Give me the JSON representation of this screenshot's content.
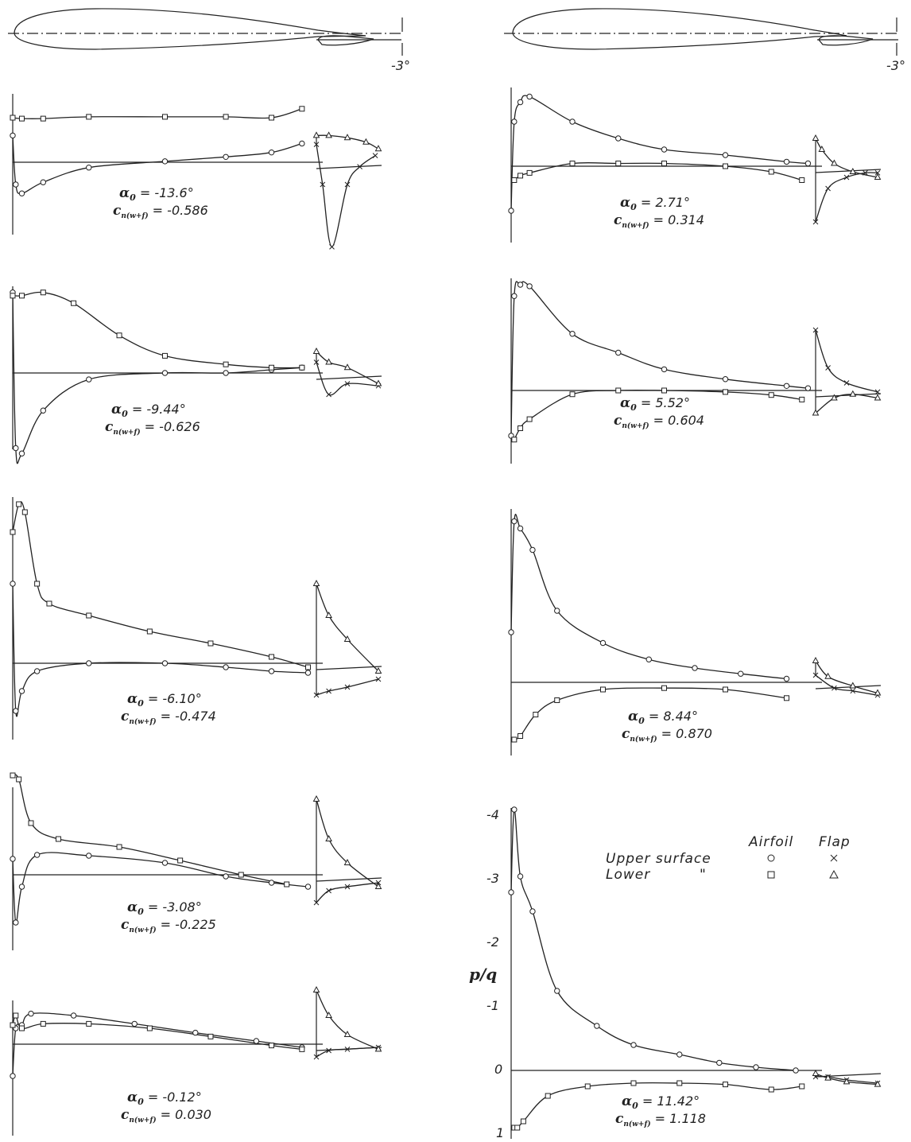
{
  "chart_data": {
    "type": "line",
    "flap_angle_label": "-3°",
    "ylabel": "p/q",
    "y_ticks": [
      "-4",
      "-3",
      "-2",
      "-1",
      "0",
      "1"
    ],
    "legend": {
      "col_airfoil": "Airfoil",
      "col_flap": "Flap",
      "upper": "Upper surface",
      "lower": "Lower",
      "ditto": "\"",
      "upper_airfoil_marker": "circle",
      "upper_flap_marker": "x",
      "lower_airfoil_marker": "square",
      "lower_flap_marker": "triangle"
    },
    "cn_symbol": "c",
    "cn_subscript": "n(w+f)",
    "alpha_symbol": "α",
    "alpha_subscript": "0",
    "panels": [
      {
        "alpha": "-13.6°",
        "cn": "-0.586",
        "upper": [
          [
            0.0,
            -0.6
          ],
          [
            0.01,
            0.5
          ],
          [
            0.03,
            0.7
          ],
          [
            0.1,
            0.45
          ],
          [
            0.25,
            0.12
          ],
          [
            0.5,
            -0.02
          ],
          [
            0.7,
            -0.12
          ],
          [
            0.85,
            -0.22
          ],
          [
            0.95,
            -0.42
          ]
        ],
        "lower": [
          [
            0.0,
            -1.0
          ],
          [
            0.03,
            -0.98
          ],
          [
            0.1,
            -0.98
          ],
          [
            0.25,
            -1.02
          ],
          [
            0.5,
            -1.02
          ],
          [
            0.7,
            -1.02
          ],
          [
            0.85,
            -1.0
          ],
          [
            0.95,
            -1.2
          ]
        ],
        "flap_upper": [
          [
            0.0,
            -0.4
          ],
          [
            0.1,
            0.5
          ],
          [
            0.25,
            1.9
          ],
          [
            0.5,
            0.5
          ],
          [
            0.7,
            0.1
          ],
          [
            0.95,
            -0.15
          ]
        ],
        "flap_lower": [
          [
            0.0,
            -0.6
          ],
          [
            0.2,
            -0.6
          ],
          [
            0.5,
            -0.55
          ],
          [
            0.8,
            -0.45
          ],
          [
            1.0,
            -0.3
          ]
        ]
      },
      {
        "alpha": "2.71°",
        "cn": "0.314",
        "upper": [
          [
            0.0,
            0.8
          ],
          [
            0.01,
            -0.8
          ],
          [
            0.03,
            -1.15
          ],
          [
            0.06,
            -1.25
          ],
          [
            0.2,
            -0.8
          ],
          [
            0.35,
            -0.5
          ],
          [
            0.5,
            -0.3
          ],
          [
            0.7,
            -0.2
          ],
          [
            0.9,
            -0.08
          ],
          [
            0.97,
            -0.05
          ]
        ],
        "lower": [
          [
            0.01,
            0.25
          ],
          [
            0.03,
            0.17
          ],
          [
            0.06,
            0.12
          ],
          [
            0.2,
            -0.05
          ],
          [
            0.35,
            -0.05
          ],
          [
            0.5,
            -0.05
          ],
          [
            0.7,
            0.0
          ],
          [
            0.85,
            0.1
          ],
          [
            0.95,
            0.25
          ]
        ],
        "flap_upper": [
          [
            0.0,
            1.0
          ],
          [
            0.2,
            0.4
          ],
          [
            0.5,
            0.2
          ],
          [
            0.8,
            0.12
          ],
          [
            1.0,
            0.12
          ]
        ],
        "flap_lower": [
          [
            0.0,
            -0.5
          ],
          [
            0.1,
            -0.3
          ],
          [
            0.3,
            -0.05
          ],
          [
            0.6,
            0.1
          ],
          [
            1.0,
            0.2
          ]
        ]
      },
      {
        "alpha": "-9.44°",
        "cn": "-0.626",
        "upper": [
          [
            0.0,
            -0.75
          ],
          [
            0.01,
            0.7
          ],
          [
            0.03,
            0.75
          ],
          [
            0.1,
            0.35
          ],
          [
            0.25,
            0.06
          ],
          [
            0.5,
            0.0
          ],
          [
            0.7,
            0.0
          ],
          [
            0.85,
            -0.03
          ],
          [
            0.95,
            -0.05
          ]
        ],
        "lower": [
          [
            0.0,
            -0.72
          ],
          [
            0.03,
            -0.72
          ],
          [
            0.1,
            -0.75
          ],
          [
            0.2,
            -0.65
          ],
          [
            0.35,
            -0.35
          ],
          [
            0.5,
            -0.16
          ],
          [
            0.7,
            -0.08
          ],
          [
            0.85,
            -0.05
          ],
          [
            0.95,
            -0.05
          ]
        ],
        "flap_upper": [
          [
            0.0,
            -0.1
          ],
          [
            0.2,
            0.2
          ],
          [
            0.5,
            0.1
          ],
          [
            1.0,
            0.12
          ]
        ],
        "flap_lower": [
          [
            0.0,
            -0.2
          ],
          [
            0.2,
            -0.1
          ],
          [
            0.5,
            -0.05
          ],
          [
            1.0,
            0.1
          ]
        ]
      },
      {
        "alpha": "5.52°",
        "cn": "0.604",
        "upper": [
          [
            0.0,
            0.6
          ],
          [
            0.01,
            -1.25
          ],
          [
            0.03,
            -1.4
          ],
          [
            0.06,
            -1.38
          ],
          [
            0.2,
            -0.75
          ],
          [
            0.35,
            -0.5
          ],
          [
            0.5,
            -0.28
          ],
          [
            0.7,
            -0.15
          ],
          [
            0.9,
            -0.06
          ],
          [
            0.97,
            -0.03
          ]
        ],
        "lower": [
          [
            0.01,
            0.65
          ],
          [
            0.03,
            0.5
          ],
          [
            0.06,
            0.38
          ],
          [
            0.2,
            0.05
          ],
          [
            0.35,
            0.0
          ],
          [
            0.5,
            0.0
          ],
          [
            0.7,
            0.02
          ],
          [
            0.85,
            0.06
          ],
          [
            0.95,
            0.12
          ]
        ],
        "flap_upper": [
          [
            0.0,
            -0.8
          ],
          [
            0.2,
            -0.3
          ],
          [
            0.5,
            -0.1
          ],
          [
            1.0,
            0.02
          ]
        ],
        "flap_lower": [
          [
            0.0,
            0.3
          ],
          [
            0.3,
            0.1
          ],
          [
            0.6,
            0.05
          ],
          [
            1.0,
            0.1
          ]
        ]
      },
      {
        "alpha": "-6.10°",
        "cn": "-0.474",
        "upper": [
          [
            0.0,
            -1.0
          ],
          [
            0.01,
            0.6
          ],
          [
            0.03,
            0.35
          ],
          [
            0.08,
            0.1
          ],
          [
            0.25,
            0.0
          ],
          [
            0.5,
            0.0
          ],
          [
            0.7,
            0.05
          ],
          [
            0.85,
            0.1
          ],
          [
            0.97,
            0.12
          ]
        ],
        "lower": [
          [
            0.0,
            -1.65
          ],
          [
            0.02,
            -2.0
          ],
          [
            0.04,
            -1.9
          ],
          [
            0.08,
            -1.0
          ],
          [
            0.12,
            -0.75
          ],
          [
            0.25,
            -0.6
          ],
          [
            0.45,
            -0.4
          ],
          [
            0.65,
            -0.25
          ],
          [
            0.85,
            -0.08
          ],
          [
            0.97,
            0.05
          ]
        ],
        "flap_upper": [
          [
            0.0,
            0.4
          ],
          [
            0.2,
            0.35
          ],
          [
            0.5,
            0.3
          ],
          [
            1.0,
            0.2
          ]
        ],
        "flap_lower": [
          [
            0.0,
            -1.0
          ],
          [
            0.2,
            -0.6
          ],
          [
            0.5,
            -0.3
          ],
          [
            1.0,
            0.1
          ]
        ]
      },
      {
        "alpha": "8.44°",
        "cn": "0.870",
        "upper": [
          [
            0.0,
            -0.7
          ],
          [
            0.01,
            -2.25
          ],
          [
            0.03,
            -2.15
          ],
          [
            0.07,
            -1.85
          ],
          [
            0.15,
            -1.0
          ],
          [
            0.3,
            -0.55
          ],
          [
            0.45,
            -0.32
          ],
          [
            0.6,
            -0.2
          ],
          [
            0.75,
            -0.12
          ],
          [
            0.9,
            -0.05
          ]
        ],
        "lower": [
          [
            0.01,
            0.8
          ],
          [
            0.03,
            0.75
          ],
          [
            0.08,
            0.45
          ],
          [
            0.15,
            0.25
          ],
          [
            0.3,
            0.1
          ],
          [
            0.5,
            0.08
          ],
          [
            0.7,
            0.1
          ],
          [
            0.9,
            0.22
          ]
        ],
        "flap_upper": [
          [
            0.0,
            -0.1
          ],
          [
            0.3,
            0.08
          ],
          [
            0.6,
            0.12
          ],
          [
            1.0,
            0.18
          ]
        ],
        "flap_lower": [
          [
            0.0,
            -0.3
          ],
          [
            0.2,
            -0.08
          ],
          [
            0.6,
            0.05
          ],
          [
            1.0,
            0.15
          ]
        ]
      },
      {
        "alpha": "-3.08°",
        "cn": "-0.225",
        "upper": [
          [
            0.0,
            -0.2
          ],
          [
            0.01,
            0.6
          ],
          [
            0.03,
            0.15
          ],
          [
            0.08,
            -0.25
          ],
          [
            0.25,
            -0.24
          ],
          [
            0.5,
            -0.15
          ],
          [
            0.7,
            0.02
          ],
          [
            0.85,
            0.1
          ],
          [
            0.97,
            0.15
          ]
        ],
        "lower": [
          [
            0.0,
            -1.25
          ],
          [
            0.02,
            -1.2
          ],
          [
            0.06,
            -0.65
          ],
          [
            0.15,
            -0.45
          ],
          [
            0.35,
            -0.35
          ],
          [
            0.55,
            -0.18
          ],
          [
            0.75,
            0.0
          ],
          [
            0.9,
            0.12
          ]
        ],
        "flap_upper": [
          [
            0.0,
            0.35
          ],
          [
            0.2,
            0.2
          ],
          [
            0.5,
            0.15
          ],
          [
            1.0,
            0.1
          ]
        ],
        "flap_lower": [
          [
            0.0,
            -0.95
          ],
          [
            0.2,
            -0.45
          ],
          [
            0.5,
            -0.15
          ],
          [
            1.0,
            0.15
          ]
        ]
      },
      {
        "alpha": "11.42°",
        "cn": "1.118",
        "upper": [
          [
            0.0,
            -2.8
          ],
          [
            0.01,
            -4.1
          ],
          [
            0.03,
            -3.05
          ],
          [
            0.07,
            -2.5
          ],
          [
            0.15,
            -1.25
          ],
          [
            0.28,
            -0.7
          ],
          [
            0.4,
            -0.4
          ],
          [
            0.55,
            -0.25
          ],
          [
            0.68,
            -0.12
          ],
          [
            0.8,
            -0.05
          ],
          [
            0.93,
            0.0
          ]
        ],
        "lower": [
          [
            0.01,
            0.9
          ],
          [
            0.02,
            0.9
          ],
          [
            0.04,
            0.8
          ],
          [
            0.12,
            0.4
          ],
          [
            0.25,
            0.25
          ],
          [
            0.4,
            0.2
          ],
          [
            0.55,
            0.2
          ],
          [
            0.7,
            0.22
          ],
          [
            0.85,
            0.3
          ],
          [
            0.95,
            0.25
          ]
        ],
        "flap_upper": [
          [
            0.0,
            0.1
          ],
          [
            0.2,
            0.1
          ],
          [
            0.5,
            0.15
          ],
          [
            1.0,
            0.2
          ]
        ],
        "flap_lower": [
          [
            0.0,
            0.05
          ],
          [
            0.2,
            0.12
          ],
          [
            0.5,
            0.18
          ],
          [
            1.0,
            0.22
          ]
        ]
      },
      {
        "alpha": "-0.12°",
        "cn": "0.030",
        "upper": [
          [
            0.0,
            0.5
          ],
          [
            0.01,
            -0.25
          ],
          [
            0.03,
            -0.3
          ],
          [
            0.06,
            -0.48
          ],
          [
            0.2,
            -0.45
          ],
          [
            0.4,
            -0.32
          ],
          [
            0.6,
            -0.18
          ],
          [
            0.8,
            -0.05
          ],
          [
            0.95,
            0.05
          ]
        ],
        "lower": [
          [
            0.0,
            -0.3
          ],
          [
            0.01,
            -0.45
          ],
          [
            0.03,
            -0.25
          ],
          [
            0.1,
            -0.32
          ],
          [
            0.25,
            -0.32
          ],
          [
            0.45,
            -0.25
          ],
          [
            0.65,
            -0.12
          ],
          [
            0.85,
            0.02
          ],
          [
            0.95,
            0.08
          ]
        ],
        "flap_upper": [
          [
            0.0,
            0.2
          ],
          [
            0.2,
            0.1
          ],
          [
            0.5,
            0.08
          ],
          [
            1.0,
            0.05
          ]
        ],
        "flap_lower": [
          [
            0.0,
            -0.85
          ],
          [
            0.2,
            -0.45
          ],
          [
            0.5,
            -0.15
          ],
          [
            1.0,
            0.08
          ]
        ]
      }
    ]
  }
}
